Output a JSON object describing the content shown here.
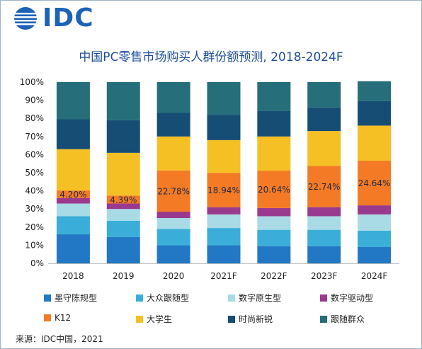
{
  "brand": {
    "logo_text": "IDC"
  },
  "chart_data": {
    "type": "bar",
    "stacked": true,
    "title": "中国PC零售市场购买人群份额预测, 2018-2024F",
    "categories": [
      "2018",
      "2019",
      "2020",
      "2021F",
      "2022F",
      "2023F",
      "2024F"
    ],
    "y_ticks": [
      "0%",
      "10%",
      "20%",
      "30%",
      "40%",
      "50%",
      "60%",
      "70%",
      "80%",
      "90%",
      "100%"
    ],
    "ylim": [
      0,
      100
    ],
    "series": [
      {
        "name": "墨守陈规型",
        "color": "#2278c4",
        "values": [
          16,
          14.5,
          10,
          10,
          9.5,
          9.5,
          9
        ]
      },
      {
        "name": "大众跟随型",
        "color": "#3aaed8",
        "values": [
          10,
          9,
          9,
          9.5,
          9,
          9,
          9
        ]
      },
      {
        "name": "数字原生型",
        "color": "#a8dbe6",
        "values": [
          7,
          6.5,
          6,
          7.5,
          7.5,
          7.5,
          9
        ]
      },
      {
        "name": "数字驱动型",
        "color": "#9a3a8e",
        "values": [
          3,
          3,
          3.5,
          4,
          4.5,
          5,
          5
        ]
      },
      {
        "name": "K12",
        "color": "#f47a25",
        "values": [
          4.2,
          4.39,
          22.78,
          18.94,
          20.64,
          22.74,
          24.64
        ]
      },
      {
        "name": "大学生",
        "color": "#f5c023",
        "values": [
          22.8,
          23.6,
          18.72,
          18.06,
          18.86,
          19.26,
          19.36
        ]
      },
      {
        "name": "时尚新锐",
        "color": "#154d74",
        "values": [
          16.5,
          18,
          13,
          14,
          14,
          13,
          13.5
        ]
      },
      {
        "name": "跟随群众",
        "color": "#256e7a",
        "values": [
          20.5,
          21,
          17,
          18,
          16,
          14,
          11
        ]
      }
    ],
    "data_labels": {
      "series": "K12",
      "labels": [
        "4.20%",
        "4.39%",
        "22.78%",
        "18.94%",
        "20.64%",
        "22.74%",
        "24.64%"
      ]
    },
    "legend_position": "bottom",
    "grid": false
  },
  "source": "来源：IDC中国，2021"
}
